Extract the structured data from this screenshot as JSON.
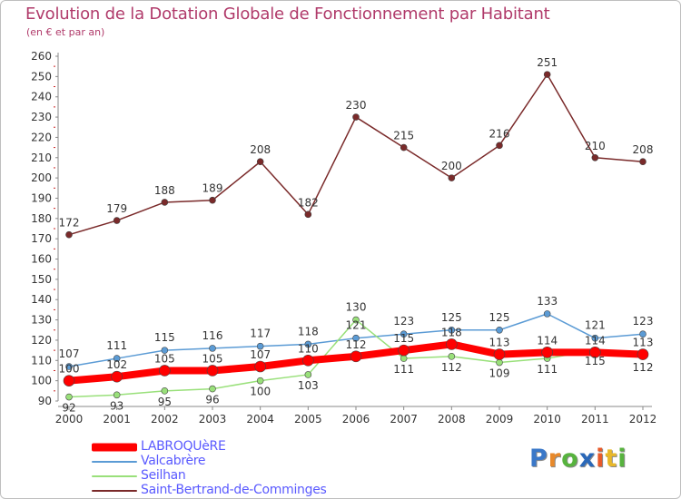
{
  "chart_data": {
    "type": "line",
    "title": "Evolution de la Dotation Globale de Fonctionnement par Habitant",
    "subtitle": "(en € et par an)",
    "x": [
      "2000",
      "2001",
      "2002",
      "2003",
      "2004",
      "2005",
      "2006",
      "2007",
      "2008",
      "2009",
      "2010",
      "2011",
      "2012"
    ],
    "ylim": [
      90,
      260
    ],
    "ytick_step": 10,
    "grid": false,
    "legend_position": "bottom-left",
    "series": [
      {
        "name": "LABROQUèRE",
        "color": "#ff0000",
        "values": [
          100,
          102,
          105,
          105,
          107,
          110,
          112,
          115,
          118,
          113,
          114,
          114,
          113
        ],
        "labels": [
          "100",
          "102",
          "105",
          "105",
          "107",
          "110",
          "112",
          "115",
          "118",
          "113",
          "114",
          "114",
          "113"
        ]
      },
      {
        "name": "Valcabrère",
        "color": "#5b9bd5",
        "values": [
          107,
          111,
          115,
          116,
          117,
          118,
          121,
          123,
          125,
          125,
          133,
          121,
          123
        ],
        "labels": [
          "107",
          "111",
          "115",
          "116",
          "117",
          "118",
          "121",
          "123",
          "125",
          "125",
          "133",
          "121",
          "123"
        ]
      },
      {
        "name": "Seilhan",
        "color": "#99e07a",
        "values": [
          92,
          93,
          95,
          96,
          100,
          103,
          130,
          111,
          112,
          109,
          111,
          115,
          112
        ],
        "labels": [
          "92",
          "93",
          "95",
          "96",
          "100",
          "103",
          "130",
          "111",
          "112",
          "109",
          "111",
          "115",
          "112"
        ]
      },
      {
        "name": "Saint-Bertrand-de-Comminges",
        "color": "#7a2a2a",
        "values": [
          172,
          179,
          188,
          189,
          208,
          182,
          230,
          215,
          200,
          216,
          251,
          210,
          208
        ],
        "labels": [
          "172",
          "179",
          "188",
          "189",
          "208",
          "182",
          "230",
          "215",
          "200",
          "216",
          "251",
          "210",
          "208"
        ]
      }
    ]
  },
  "logo": {
    "letters": [
      {
        "ch": "P",
        "color": "#3a78c9"
      },
      {
        "ch": "r",
        "color": "#e8892a"
      },
      {
        "ch": "o",
        "color": "#57b33e"
      },
      {
        "ch": "x",
        "color": "#2a68b9"
      },
      {
        "ch": "i",
        "color": "#e85a2a"
      },
      {
        "ch": "t",
        "color": "#e8b82a"
      },
      {
        "ch": "i",
        "color": "#57b33e"
      }
    ]
  }
}
